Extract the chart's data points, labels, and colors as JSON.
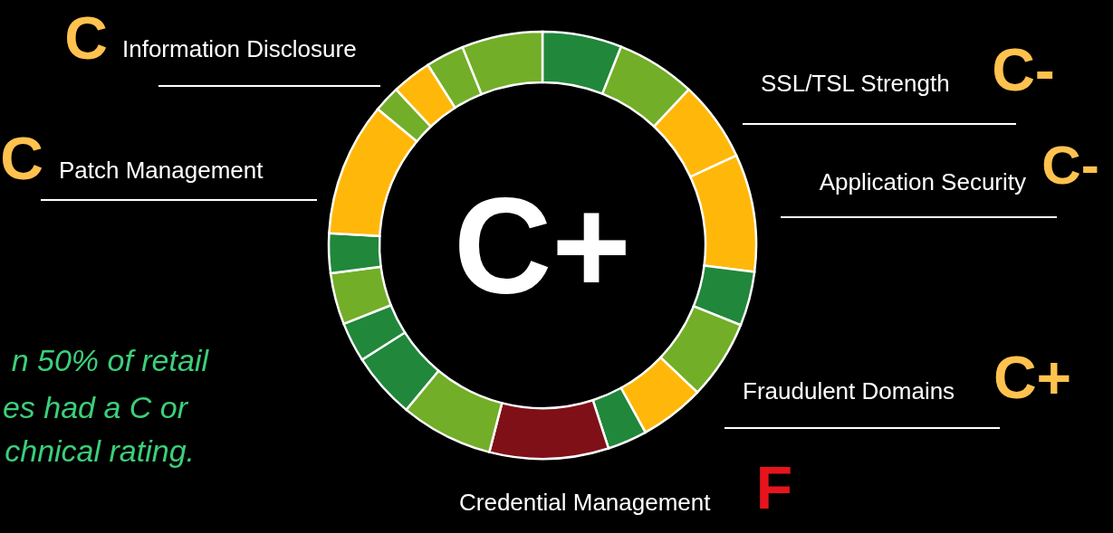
{
  "chart_data": {
    "type": "donut",
    "categories": [
      null,
      null,
      null,
      null,
      null,
      null,
      null,
      null,
      null,
      null,
      null,
      null,
      null,
      null,
      null,
      null,
      null,
      null,
      null
    ],
    "values": [
      6.0,
      6.0,
      6.1,
      8.9,
      4.1,
      6.0,
      4.9,
      3.0,
      9.0,
      7.0,
      5.0,
      3.0,
      3.9,
      3.0,
      10.1,
      2.0,
      3.0,
      2.9,
      6.1
    ],
    "colors": [
      "#20873b",
      "#72ae28",
      "#ffb80a",
      "#ffb80a",
      "#20873b",
      "#72ae28",
      "#ffb80a",
      "#20873b",
      "#7f1018",
      "#72ae28",
      "#20873b",
      "#20873b",
      "#72ae28",
      "#20873b",
      "#ffb80a",
      "#72ae28",
      "#ffb80a",
      "#72ae28",
      "#72ae28"
    ],
    "annotations": [
      "C+",
      "Information Disclosure",
      "C",
      "Patch Management",
      "C",
      "SSL/TSL Strength",
      "C-",
      "Application Security",
      "C-",
      "Fraudulent Domains",
      "C+",
      "Credential Management",
      "F",
      "n 50% of retail",
      "es had a C or",
      "chnical rating."
    ]
  }
}
